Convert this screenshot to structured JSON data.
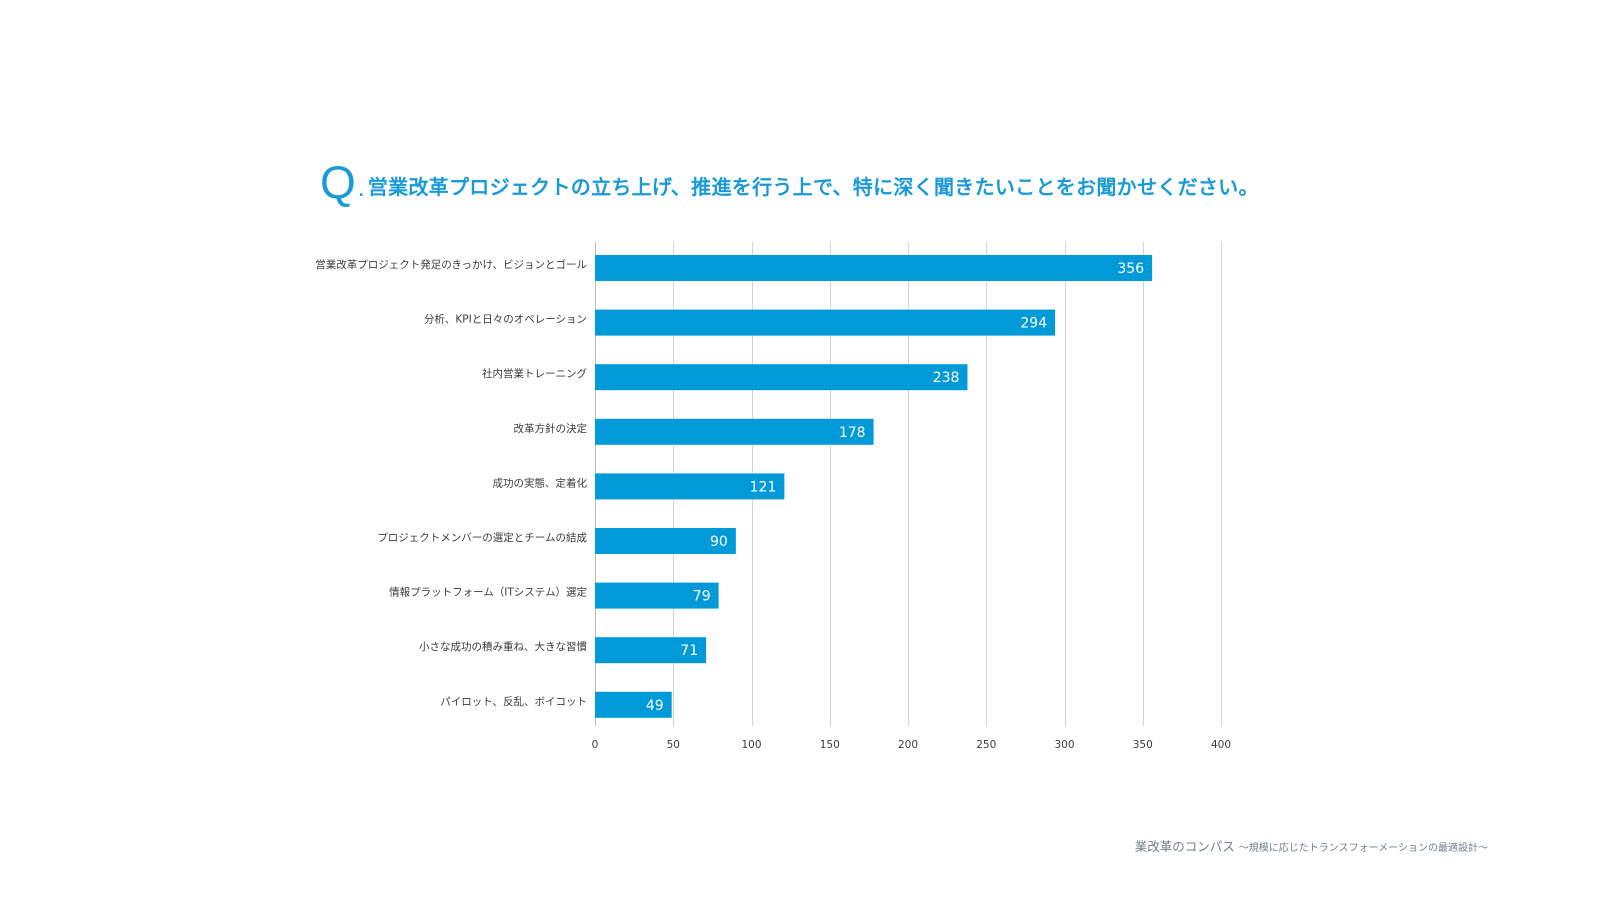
{
  "question": {
    "mark": "Q",
    "dot": ".",
    "text": "営業改革プロジェクトの立ち上げ、推進を行う上で、特に深く聞きたいことをお聞かせください。"
  },
  "chart_data": {
    "type": "bar",
    "orientation": "horizontal",
    "title": "営業改革プロジェクトの立ち上げ、推進を行う上で、特に深く聞きたいことをお聞かせください。",
    "categories": [
      "営業改革プロジェクト発足のきっかけ、ビジョンとゴール",
      "分析、KPIと日々のオペレーション",
      "社内営業トレーニング",
      "改革方針の決定",
      "成功の実態、定着化",
      "プロジェクトメンバーの選定とチームの結成",
      "情報プラットフォーム（ITシステム）選定",
      "小さな成功の積み重ね、大きな習慣",
      "パイロット、反乱、ボイコット"
    ],
    "values": [
      356,
      294,
      238,
      178,
      121,
      90,
      79,
      71,
      49
    ],
    "xlim": [
      0,
      400
    ],
    "xticks": [
      0,
      50,
      100,
      150,
      200,
      250,
      300,
      350,
      400
    ],
    "grid": true,
    "data_labels": true,
    "legend": "none",
    "xlabel": "",
    "ylabel": "",
    "bar_color": "#009ad9",
    "grid_color": "#d4d4d4",
    "label_text_color": "#3c3c3c",
    "value_label_color": "#ffffff"
  },
  "footer": {
    "main": "業改革のコンパス",
    "sub": "～規模に応じたトランスフォーメーションの最適設計～"
  }
}
